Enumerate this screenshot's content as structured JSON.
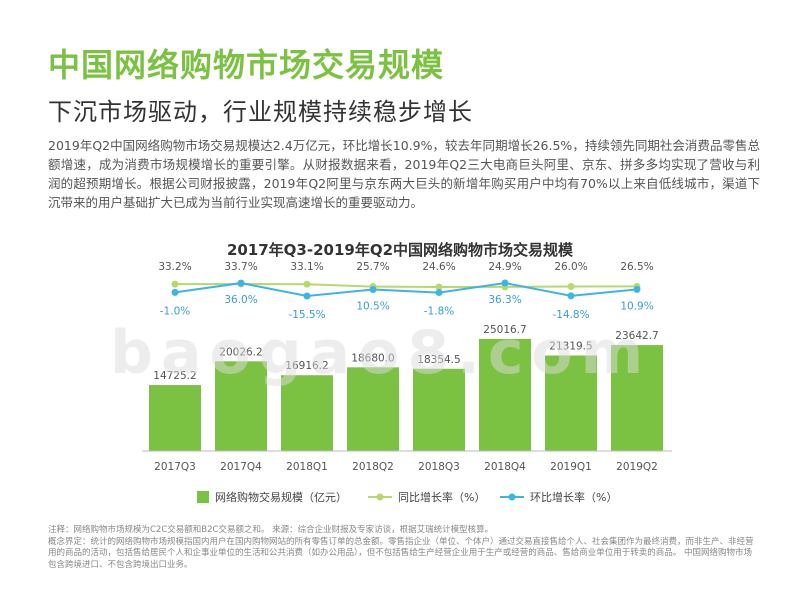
{
  "header": {
    "title": "中国网络购物市场交易规模",
    "subtitle": "下沉市场驱动，行业规模持续稳步增长"
  },
  "body_text": "2019年Q2中国网络购物市场交易规模达2.4万亿元，环比增长10.9%，较去年同期增长26.5%，持续领先同期社会消费品零售总额增速，成为消费市场规模增长的重要引擎。从财报数据来看，2019年Q2三大电商巨头阿里、京东、拼多多均实现了营收与利润的超预期增长。根据公司财报披露，2019年Q2阿里与京东两大巨头的新增年购买用户中均有70%以上来自低线城市，渠道下沉带来的用户基础扩大已成为当前行业实现高速增长的重要驱动力。",
  "watermark": "baogao8.com",
  "notes": {
    "line1": "注释：网络购物市场规模为C2C交易额和B2C交易额之和。 来源：综合企业财报及专家访谈，根据艾瑞统计模型核算。",
    "line2": "概念界定：统计的网络购物市场规模指国内用户在国内购物网站的所有零售订单的总金额。零售指企业（单位、个体户）通过交易直接售给个人、社会集团作为最终消费，而非生产、非经营用的商品的活动，包括售给居民个人和企事业单位的生活和公共消费（如办公用品），但不包括售给生产经营企业用于生产或经营的商品、售给商业单位用于转卖的商品。 中国网络购物市场包含跨境进口、不包含跨境出口业务。"
  },
  "colors": {
    "title": "#7cc242",
    "bar": "#7cc242",
    "yoy_line": "#b8d96a",
    "qoq_line": "#3cb4e6",
    "text": "#555555"
  },
  "chart_data": {
    "type": "bar",
    "title": "2017年Q3-2019年Q2中国网络购物市场交易规模",
    "categories": [
      "2017Q3",
      "2017Q4",
      "2018Q1",
      "2018Q2",
      "2018Q3",
      "2018Q4",
      "2019Q1",
      "2019Q2"
    ],
    "ylim": [
      0,
      25000
    ],
    "series": [
      {
        "name": "网络购物交易规模（亿元）",
        "kind": "bar",
        "values": [
          14725.2,
          20026.2,
          16916.2,
          18680.0,
          18354.5,
          25016.7,
          21319.5,
          23642.7
        ],
        "labels": [
          "14725.2",
          "20026.2",
          "16916.2",
          "18680.0",
          "18354.5",
          "25016.7",
          "21319.5",
          "23642.7"
        ]
      },
      {
        "name": "同比增长率（%）",
        "kind": "line",
        "values": [
          33.2,
          33.7,
          33.1,
          25.7,
          24.6,
          24.9,
          26.0,
          26.5
        ],
        "labels": [
          "33.2%",
          "33.7%",
          "33.1%",
          "25.7%",
          "24.6%",
          "24.9%",
          "26.0%",
          "26.5%"
        ]
      },
      {
        "name": "环比增长率（%）",
        "kind": "line",
        "values": [
          -1.0,
          36.0,
          -15.5,
          10.5,
          -1.8,
          36.3,
          -14.8,
          10.9
        ],
        "labels": [
          "-1.0%",
          "36.0%",
          "-15.5%",
          "10.5%",
          "-1.8%",
          "36.3%",
          "-14.8%",
          "10.9%"
        ]
      }
    ],
    "legend": [
      "网络购物交易规模（亿元）",
      "同比增长率（%）",
      "环比增长率（%）"
    ],
    "legend_position": "bottom"
  }
}
